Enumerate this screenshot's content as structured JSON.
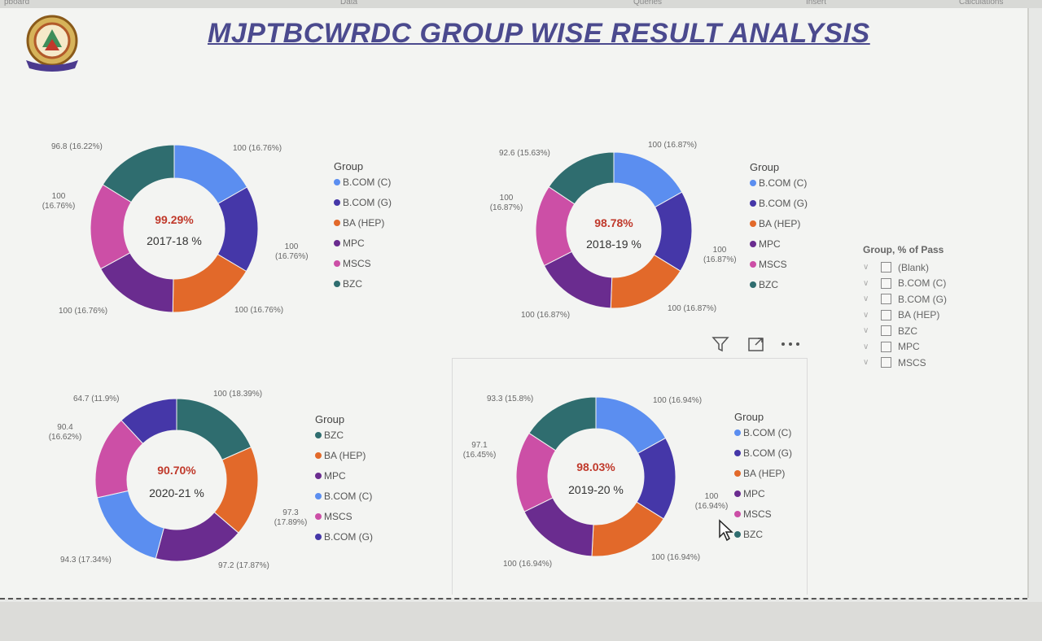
{
  "ribbon": [
    "pboard",
    "Data",
    "Queries",
    "Insert",
    "Calculations"
  ],
  "title": "MJPTBCWRDC GROUP WISE  RESULT ANALYSIS",
  "colors": {
    "B.COM (C)": "#5b8ef0",
    "B.COM (G)": "#4537a8",
    "BA (HEP)": "#e2692a",
    "MPC": "#6a2c8f",
    "MSCS": "#cc4fa6",
    "BZC": "#2f6d6f"
  },
  "charts": [
    {
      "id": "2017",
      "center_pct": "99.29%",
      "center_year": "2017-18 %",
      "legend_title": "Group",
      "slices": [
        {
          "group": "B.COM (C)",
          "value": 100,
          "label": "100 (16.76%)"
        },
        {
          "group": "B.COM (G)",
          "value": 100,
          "label": "100 (16.76%)"
        },
        {
          "group": "BA (HEP)",
          "value": 100,
          "label": "100 (16.76%)"
        },
        {
          "group": "MPC",
          "value": 100,
          "label": "100 (16.76%)"
        },
        {
          "group": "MSCS",
          "value": 100,
          "label": "100 (16.76%)"
        },
        {
          "group": "BZC",
          "value": 96.8,
          "label": "96.8 (16.22%)"
        }
      ],
      "legend": [
        "B.COM (C)",
        "B.COM (G)",
        "BA (HEP)",
        "MPC",
        "MSCS",
        "BZC"
      ]
    },
    {
      "id": "2018",
      "center_pct": "98.78%",
      "center_year": "2018-19 %",
      "legend_title": "Group",
      "slices": [
        {
          "group": "B.COM (C)",
          "value": 100,
          "label": "100 (16.87%)"
        },
        {
          "group": "B.COM (G)",
          "value": 100,
          "label": "100 (16.87%)"
        },
        {
          "group": "BA (HEP)",
          "value": 100,
          "label": "100 (16.87%)"
        },
        {
          "group": "MPC",
          "value": 100,
          "label": "100 (16.87%)"
        },
        {
          "group": "MSCS",
          "value": 100,
          "label": "100 (16.87%)"
        },
        {
          "group": "BZC",
          "value": 92.6,
          "label": "92.6 (15.63%)"
        }
      ],
      "legend": [
        "B.COM (C)",
        "B.COM (G)",
        "BA (HEP)",
        "MPC",
        "MSCS",
        "BZC"
      ]
    },
    {
      "id": "2020",
      "center_pct": "90.70%",
      "center_year": "2020-21 %",
      "legend_title": "Group",
      "slices": [
        {
          "group": "BZC",
          "value": 100,
          "label": "100 (18.39%)"
        },
        {
          "group": "BA (HEP)",
          "value": 97.3,
          "label": "97.3 (17.89%)"
        },
        {
          "group": "MPC",
          "value": 97.2,
          "label": "97.2 (17.87%)"
        },
        {
          "group": "B.COM (C)",
          "value": 94.3,
          "label": "94.3 (17.34%)"
        },
        {
          "group": "MSCS",
          "value": 90.4,
          "label": "90.4 (16.62%)"
        },
        {
          "group": "B.COM (G)",
          "value": 64.7,
          "label": "64.7 (11.9%)"
        }
      ],
      "legend": [
        "BZC",
        "BA (HEP)",
        "MPC",
        "B.COM (C)",
        "MSCS",
        "B.COM (G)"
      ]
    },
    {
      "id": "2019",
      "center_pct": "98.03%",
      "center_year": "2019-20 %",
      "legend_title": "Group",
      "slices": [
        {
          "group": "B.COM (C)",
          "value": 100,
          "label": "100 (16.94%)"
        },
        {
          "group": "B.COM (G)",
          "value": 100,
          "label": "100 (16.94%)"
        },
        {
          "group": "BA (HEP)",
          "value": 100,
          "label": "100 (16.94%)"
        },
        {
          "group": "MPC",
          "value": 100,
          "label": "100 (16.94%)"
        },
        {
          "group": "MSCS",
          "value": 97.1,
          "label": "97.1 (16.45%)"
        },
        {
          "group": "BZC",
          "value": 93.3,
          "label": "93.3 (15.8%)"
        }
      ],
      "legend": [
        "B.COM (C)",
        "B.COM (G)",
        "BA (HEP)",
        "MPC",
        "MSCS",
        "BZC"
      ]
    }
  ],
  "slicer": {
    "title": "Group, % of Pass",
    "items": [
      "(Blank)",
      "B.COM (C)",
      "B.COM (G)",
      "BA (HEP)",
      "BZC",
      "MPC",
      "MSCS"
    ]
  }
}
